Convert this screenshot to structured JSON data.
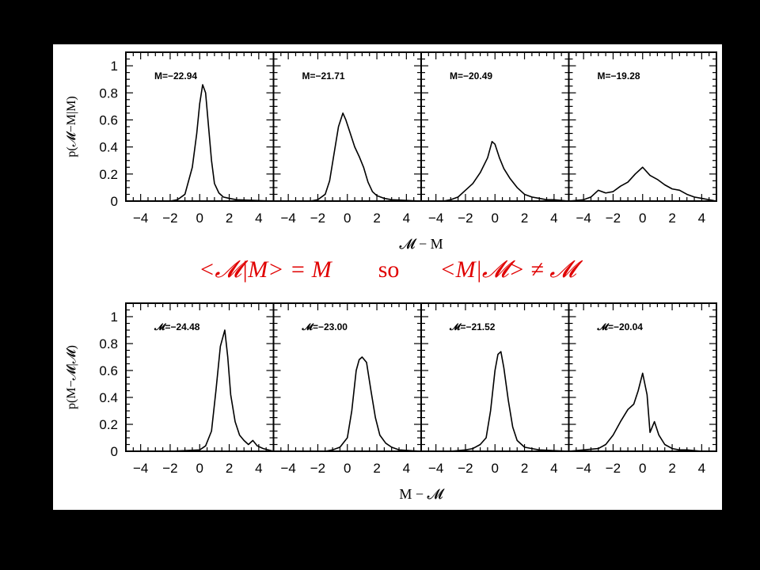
{
  "caption": {
    "left": "<𝓜|M> = M",
    "middle": "so",
    "right": "<M|𝓜> ≠ 𝓜"
  },
  "colors": {
    "background": "#000000",
    "figure": "#ffffff",
    "caption": "#e00000",
    "line": "#000000"
  },
  "chart_data": [
    {
      "type": "line",
      "row": "top",
      "ylabel": "p(𝓜−M|M)",
      "xlabel": "𝓜 − M",
      "xlim": [
        -5,
        5
      ],
      "ylim": [
        0,
        1.1
      ],
      "xticks": [
        "−4",
        "−2",
        "0",
        "2",
        "4"
      ],
      "yticks": [
        "0",
        "0.2",
        "0.4",
        "0.6",
        "0.8",
        "1"
      ],
      "panels": [
        {
          "label": "M=−22.94",
          "x": [
            -5,
            -2,
            -1.5,
            -1,
            -0.5,
            -0.2,
            0,
            0.2,
            0.4,
            0.6,
            0.8,
            1.0,
            1.3,
            1.6,
            2.0,
            2.5,
            5
          ],
          "y": [
            0,
            0,
            0.01,
            0.05,
            0.25,
            0.5,
            0.72,
            0.86,
            0.8,
            0.55,
            0.3,
            0.13,
            0.06,
            0.03,
            0.02,
            0.01,
            0
          ]
        },
        {
          "label": "M=−21.71",
          "x": [
            -5,
            -2.5,
            -2,
            -1.5,
            -1.2,
            -0.9,
            -0.6,
            -0.3,
            -0.1,
            0.2,
            0.5,
            0.8,
            1.1,
            1.4,
            1.7,
            2.0,
            2.5,
            3.0,
            5
          ],
          "y": [
            0,
            0,
            0.01,
            0.05,
            0.15,
            0.35,
            0.55,
            0.65,
            0.6,
            0.5,
            0.4,
            0.33,
            0.25,
            0.14,
            0.07,
            0.04,
            0.02,
            0.01,
            0
          ]
        },
        {
          "label": "M=−20.49",
          "x": [
            -5,
            -3.5,
            -3,
            -2.5,
            -2,
            -1.5,
            -1,
            -0.5,
            -0.2,
            0,
            0.3,
            0.6,
            1,
            1.5,
            2,
            2.5,
            3,
            3.5,
            4,
            5
          ],
          "y": [
            0,
            0,
            0.01,
            0.03,
            0.08,
            0.13,
            0.21,
            0.32,
            0.44,
            0.42,
            0.32,
            0.24,
            0.17,
            0.1,
            0.05,
            0.03,
            0.02,
            0.01,
            0.01,
            0
          ]
        },
        {
          "label": "M=−19.28",
          "x": [
            -5,
            -4,
            -3.5,
            -3,
            -2.5,
            -2,
            -1.5,
            -1,
            -0.5,
            0,
            0.5,
            1,
            1.5,
            2,
            2.5,
            3,
            3.5,
            4,
            5
          ],
          "y": [
            0,
            0.01,
            0.03,
            0.08,
            0.06,
            0.07,
            0.11,
            0.14,
            0.2,
            0.25,
            0.19,
            0.16,
            0.12,
            0.09,
            0.08,
            0.05,
            0.03,
            0.02,
            0
          ]
        }
      ]
    },
    {
      "type": "line",
      "row": "bottom",
      "ylabel": "p(M−𝓜|𝓜)",
      "xlabel": "M − 𝓜",
      "xlim": [
        -5,
        5
      ],
      "ylim": [
        0,
        1.1
      ],
      "xticks": [
        "−4",
        "−2",
        "0",
        "2",
        "4"
      ],
      "yticks": [
        "0",
        "0.2",
        "0.4",
        "0.6",
        "0.8",
        "1"
      ],
      "panels": [
        {
          "label": "𝓜=−24.48",
          "x": [
            -5,
            -2,
            0,
            0.4,
            0.8,
            1.1,
            1.4,
            1.7,
            1.9,
            2.1,
            2.4,
            2.7,
            3.0,
            3.3,
            3.6,
            3.9,
            4.3,
            5
          ],
          "y": [
            0,
            0,
            0.01,
            0.04,
            0.15,
            0.45,
            0.78,
            0.9,
            0.7,
            0.42,
            0.22,
            0.12,
            0.08,
            0.05,
            0.08,
            0.04,
            0.02,
            0
          ]
        },
        {
          "label": "𝓜=−23.00",
          "x": [
            -5,
            -1.5,
            -1,
            -0.5,
            0,
            0.3,
            0.6,
            0.8,
            1.0,
            1.3,
            1.6,
            1.9,
            2.2,
            2.6,
            3.0,
            3.5,
            5
          ],
          "y": [
            0,
            0,
            0.01,
            0.03,
            0.1,
            0.3,
            0.6,
            0.68,
            0.7,
            0.66,
            0.45,
            0.25,
            0.12,
            0.06,
            0.03,
            0.01,
            0
          ]
        },
        {
          "label": "𝓜=−21.52",
          "x": [
            -5,
            -3,
            -2,
            -1.5,
            -1,
            -0.6,
            -0.3,
            0,
            0.2,
            0.4,
            0.6,
            0.9,
            1.2,
            1.5,
            2,
            2.5,
            3,
            5
          ],
          "y": [
            0,
            0,
            0.01,
            0.02,
            0.05,
            0.1,
            0.3,
            0.6,
            0.72,
            0.74,
            0.62,
            0.38,
            0.18,
            0.08,
            0.03,
            0.02,
            0.01,
            0
          ]
        },
        {
          "label": "𝓜=−20.04",
          "x": [
            -5,
            -4,
            -3,
            -2.5,
            -2,
            -1.5,
            -1,
            -0.6,
            -0.3,
            0,
            0.3,
            0.5,
            0.8,
            1.1,
            1.5,
            2,
            2.5,
            3,
            4,
            5
          ],
          "y": [
            0,
            0.01,
            0.02,
            0.05,
            0.12,
            0.22,
            0.31,
            0.35,
            0.45,
            0.58,
            0.42,
            0.14,
            0.22,
            0.12,
            0.05,
            0.02,
            0.01,
            0.01,
            0,
            0
          ]
        }
      ]
    }
  ]
}
